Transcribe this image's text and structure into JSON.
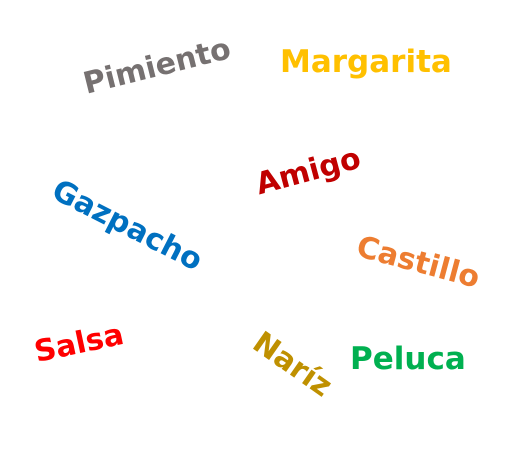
{
  "words": [
    {
      "id": "pimiento",
      "text": "Pimiento",
      "color": "#767171"
    },
    {
      "id": "margarita",
      "text": "Margarita",
      "color": "#FFC000"
    },
    {
      "id": "amigo",
      "text": "Amigo",
      "color": "#C00000"
    },
    {
      "id": "gazpacho",
      "text": "Gazpacho",
      "color": "#0070C0"
    },
    {
      "id": "castillo",
      "text": "Castillo",
      "color": "#ED7D31"
    },
    {
      "id": "salsa",
      "text": "Salsa",
      "color": "#FF0000"
    },
    {
      "id": "nariz",
      "text": "Naríz",
      "color": "#BF9000"
    },
    {
      "id": "peluca",
      "text": "Peluca",
      "color": "#00B050"
    }
  ]
}
